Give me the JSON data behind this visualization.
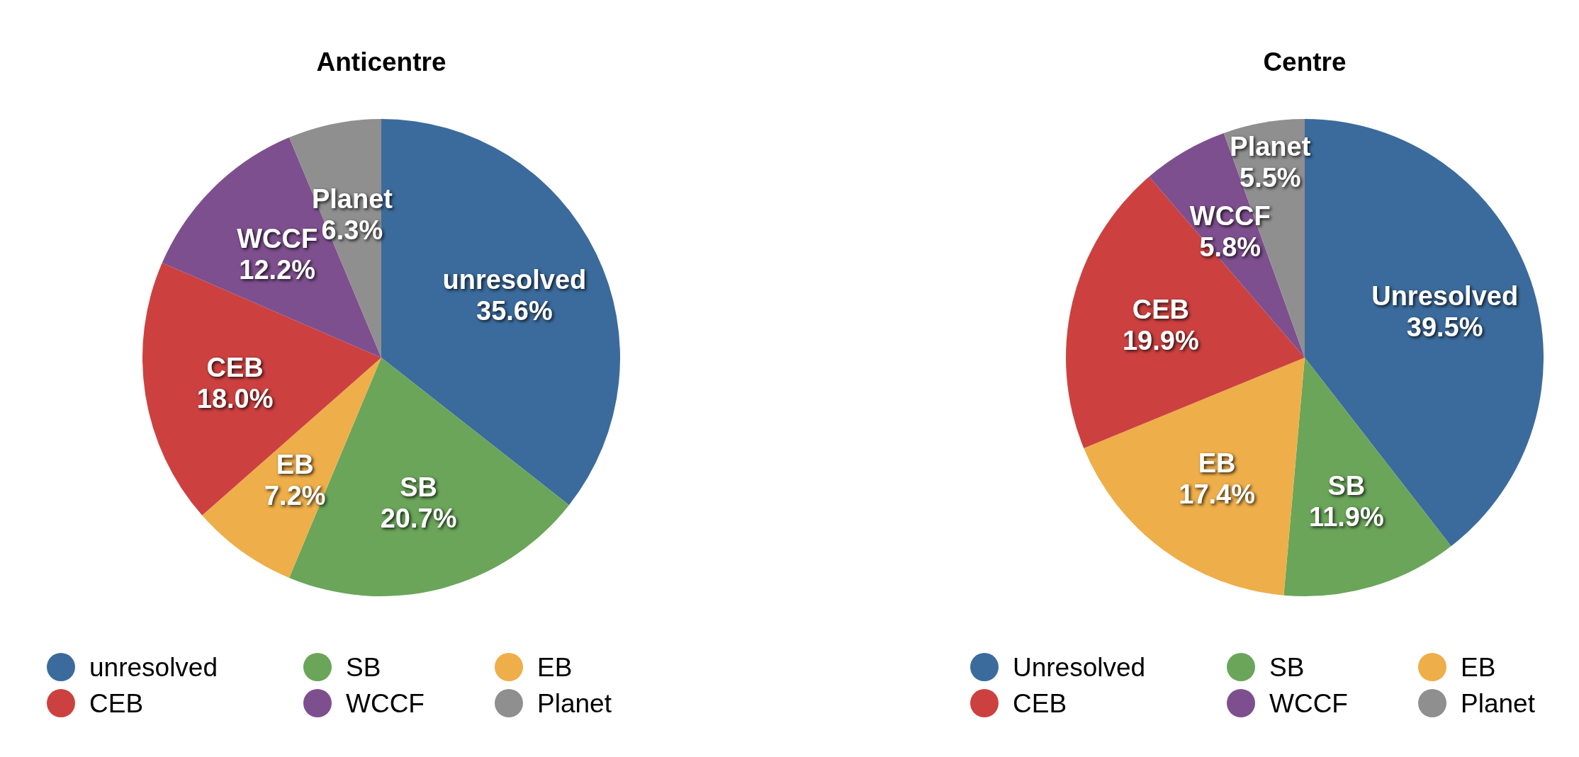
{
  "chart_data": [
    {
      "type": "pie",
      "title": "Anticentre",
      "categories": [
        "unresolved",
        "SB",
        "EB",
        "CEB",
        "WCCF",
        "Planet"
      ],
      "values": [
        35.6,
        20.7,
        7.2,
        18.0,
        12.2,
        6.3
      ],
      "value_labels": [
        "35.6%",
        "20.7%",
        "7.2%",
        "18.0%",
        "12.2%",
        "6.3%"
      ],
      "colors": [
        "#3b6b9c",
        "#6aa55a",
        "#eeae4a",
        "#cc4140",
        "#7e4f8e",
        "#8f8f8f"
      ],
      "legend": "bottom"
    },
    {
      "type": "pie",
      "title": "Centre",
      "categories": [
        "Unresolved",
        "SB",
        "EB",
        "CEB",
        "WCCF",
        "Planet"
      ],
      "values": [
        39.5,
        11.9,
        17.4,
        19.9,
        5.8,
        5.5
      ],
      "value_labels": [
        "39.5%",
        "11.9%",
        "17.4%",
        "19.9%",
        "5.8%",
        "5.5%"
      ],
      "colors": [
        "#3b6b9c",
        "#6aa55a",
        "#eeae4a",
        "#cc4140",
        "#7e4f8e",
        "#8f8f8f"
      ],
      "legend": "bottom"
    }
  ]
}
